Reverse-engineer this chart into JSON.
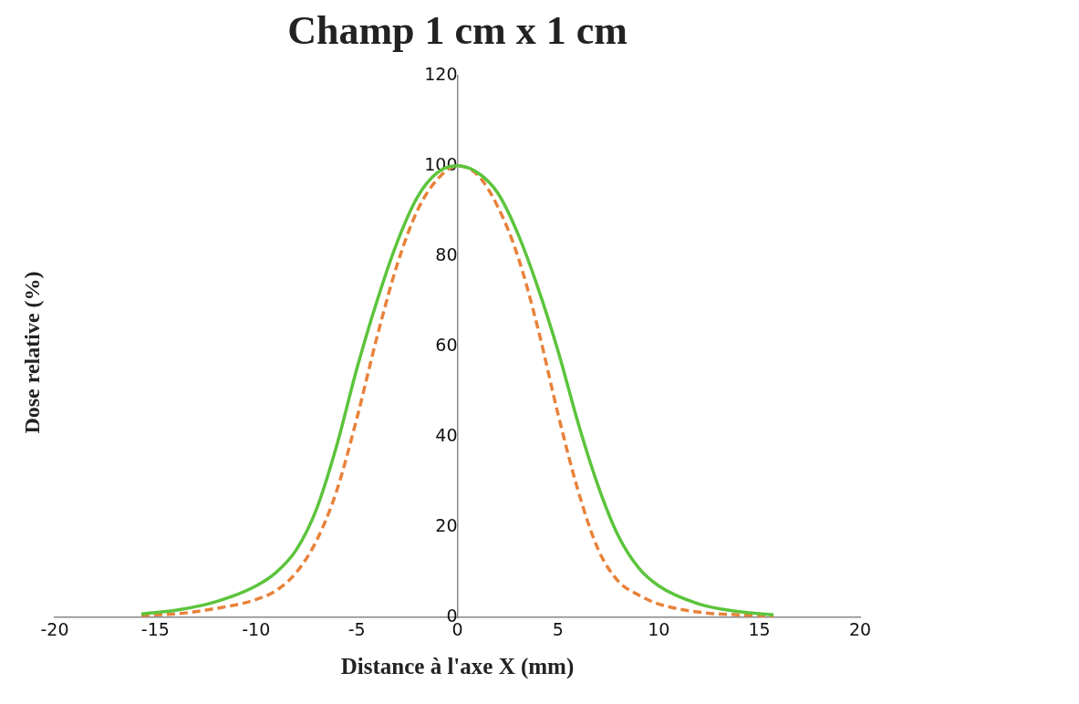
{
  "chart_data": {
    "type": "line",
    "title": "Champ 1 cm x 1 cm",
    "xlabel": "Distance à l'axe X (mm)",
    "ylabel": "Dose relative (%)",
    "xlim": [
      -20,
      20
    ],
    "xticks": [
      -20,
      -15,
      -10,
      -5,
      0,
      5,
      10,
      15,
      20
    ],
    "ylim": [
      0,
      120
    ],
    "yticks": [
      0,
      20,
      40,
      60,
      80,
      100,
      120
    ],
    "grid": false,
    "marker": "none",
    "series": [
      {
        "color": "#5cc43c",
        "line_style": "solid",
        "x": [
          -15.7,
          -14,
          -12,
          -10,
          -9,
          -8,
          -7,
          -6,
          -5,
          -4,
          -3,
          -2,
          -1,
          0,
          1,
          2,
          3,
          4,
          5,
          6,
          7,
          8,
          9,
          10,
          12,
          14,
          15.7
        ],
        "values": [
          0.8,
          1.6,
          3.5,
          7,
          10,
          15,
          24,
          38,
          55,
          70,
          83,
          93,
          98.5,
          100,
          98.5,
          94,
          85,
          73,
          59,
          43,
          29,
          18,
          11,
          7,
          3,
          1.3,
          0.6
        ]
      },
      {
        "color": "#e8823a",
        "line_style": "dashed",
        "x": [
          -15.7,
          -14,
          -12,
          -10,
          -9,
          -8,
          -7,
          -6,
          -5,
          -4,
          -3,
          -2,
          -1,
          0,
          1,
          2,
          3,
          4,
          5,
          6,
          7,
          8,
          9,
          10,
          12,
          14,
          15.7
        ],
        "values": [
          0.5,
          0.8,
          2,
          4,
          6,
          10,
          17,
          28,
          44,
          62,
          78,
          90,
          97,
          100,
          98,
          91,
          80,
          64,
          45,
          28,
          15,
          8,
          5,
          3,
          1.2,
          0.6,
          0.4
        ]
      }
    ]
  }
}
